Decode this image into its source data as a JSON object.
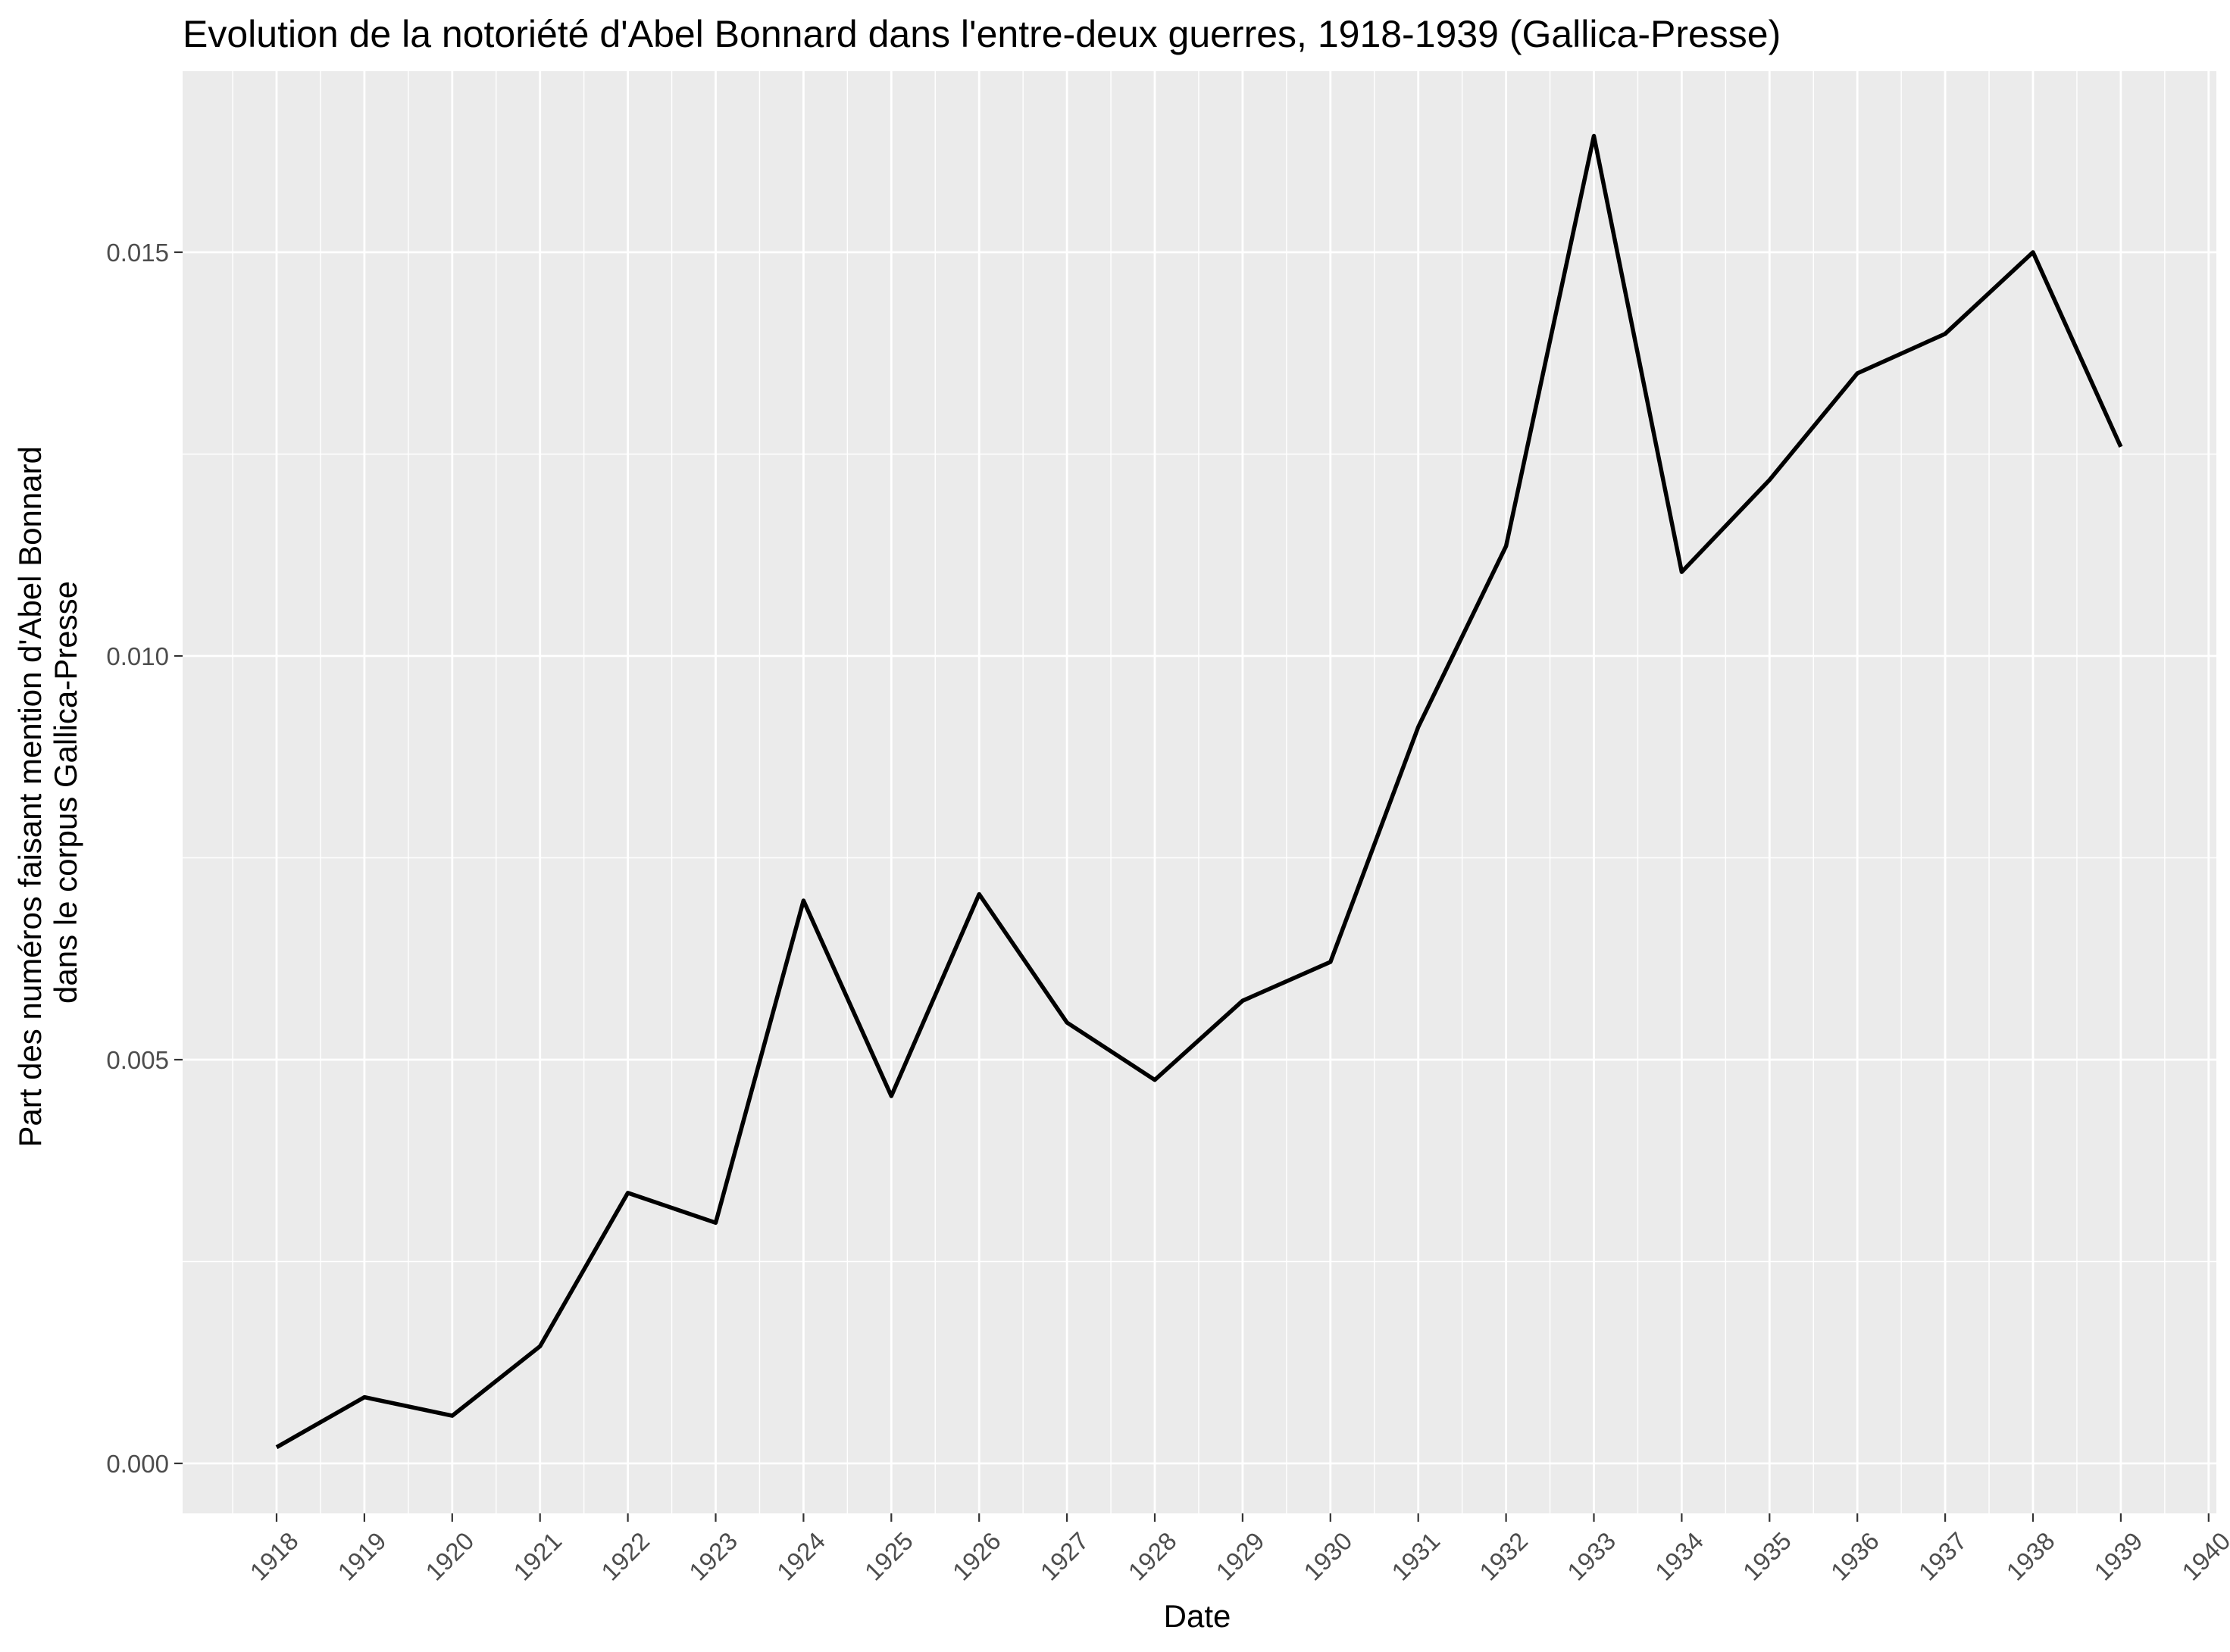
{
  "chart_data": {
    "type": "line",
    "title": "Evolution de la notoriété d'Abel Bonnard dans l'entre-deux guerres, 1918-1939 (Gallica-Presse)",
    "xlabel": "Date",
    "ylabel_lines": [
      "Part des numéros faisant mention d'Abel Bonnard",
      "dans le corpus Gallica-Presse"
    ],
    "x": [
      1918,
      1919,
      1920,
      1921,
      1922,
      1923,
      1924,
      1925,
      1926,
      1927,
      1928,
      1929,
      1930,
      1931,
      1932,
      1933,
      1934,
      1935,
      1936,
      1937,
      1938,
      1939
    ],
    "series": [
      {
        "values": [
          0.0002,
          0.00082,
          0.00059,
          0.00145,
          0.00335,
          0.00298,
          0.00697,
          0.00455,
          0.00705,
          0.00546,
          0.00475,
          0.00573,
          0.00621,
          0.00912,
          0.01136,
          0.01644,
          0.01104,
          0.01218,
          0.0135,
          0.01399,
          0.015,
          0.01259
        ],
        "color": "#000000"
      }
    ],
    "xlim": [
      1917,
      1940
    ],
    "ylim": [
      -0.0006,
      0.0172
    ],
    "x_ticks": [
      1918,
      1919,
      1920,
      1921,
      1922,
      1923,
      1924,
      1925,
      1926,
      1927,
      1928,
      1929,
      1930,
      1931,
      1932,
      1933,
      1934,
      1935,
      1936,
      1937,
      1938,
      1939,
      1940
    ],
    "x_tick_labels": [
      "1918",
      "1919",
      "1920",
      "1921",
      "1922",
      "1923",
      "1924",
      "1925",
      "1926",
      "1927",
      "1928",
      "1929",
      "1930",
      "1931",
      "1932",
      "1933",
      "1934",
      "1935",
      "1936",
      "1937",
      "1938",
      "1939",
      "1940"
    ],
    "y_ticks": [
      0,
      0.005,
      0.01,
      0.015
    ],
    "y_tick_labels": [
      "0.000",
      "0.005",
      "0.010",
      "0.015"
    ],
    "grid": true,
    "panel_background": "#ebebeb",
    "grid_color": "#ffffff",
    "legend": "none"
  }
}
